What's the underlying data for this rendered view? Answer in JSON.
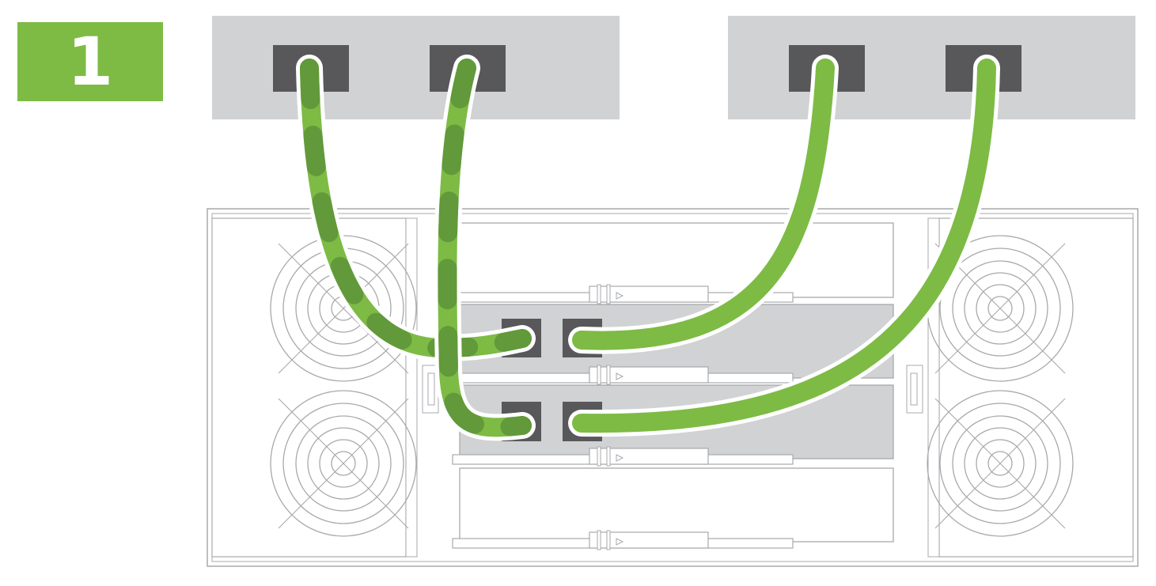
{
  "step": {
    "number": "1"
  },
  "colors": {
    "accent_green": "#7dbb45",
    "dark_green": "#62993a",
    "panel_gray": "#d1d2d4",
    "port_dark": "#58585b",
    "line_gray": "#a7a9ac",
    "sled_gray": "#d1d2d4"
  },
  "icons": {
    "step_badge": "green-square-number",
    "fan": "fan-grille-icon",
    "cable": "cable-icon",
    "port": "port-icon"
  }
}
